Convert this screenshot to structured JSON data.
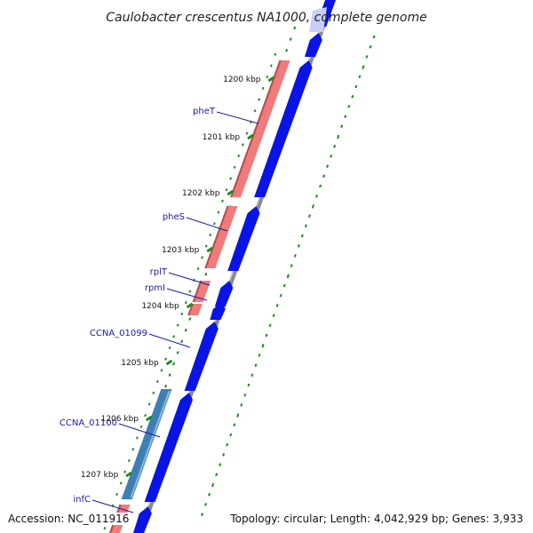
{
  "title": "Caulobacter crescentus NA1000, complete genome",
  "footer": {
    "accession": "Accession: NC_011916",
    "topology": "Topology: circular; Length: 4,042,929 bp; Genes: 3,933"
  },
  "colors": {
    "forward_gene": "#f07b7b",
    "forward_gene_dark": "#b84c4c",
    "reverse_gene": "#0a14e6",
    "reverse_gene_light": "#2f3cff",
    "other_gene": "#3d7fb4",
    "backbone": "#8a8a8a",
    "tick_mark": "#1f8a1f",
    "gene_label": "#1a1aa8"
  },
  "scale_ticks": [
    {
      "label": "1200 kbp"
    },
    {
      "label": "1201 kbp"
    },
    {
      "label": "1202 kbp"
    },
    {
      "label": "1203 kbp"
    },
    {
      "label": "1204 kbp"
    },
    {
      "label": "1205 kbp"
    },
    {
      "label": "1206 kbp"
    },
    {
      "label": "1207 kbp"
    }
  ],
  "gene_labels": [
    {
      "label": "pheT"
    },
    {
      "label": "pheS"
    },
    {
      "label": "rplT"
    },
    {
      "label": "rpmI"
    },
    {
      "label": "CCNA_01099"
    },
    {
      "label": "CCNA_01100"
    },
    {
      "label": "infC"
    }
  ]
}
